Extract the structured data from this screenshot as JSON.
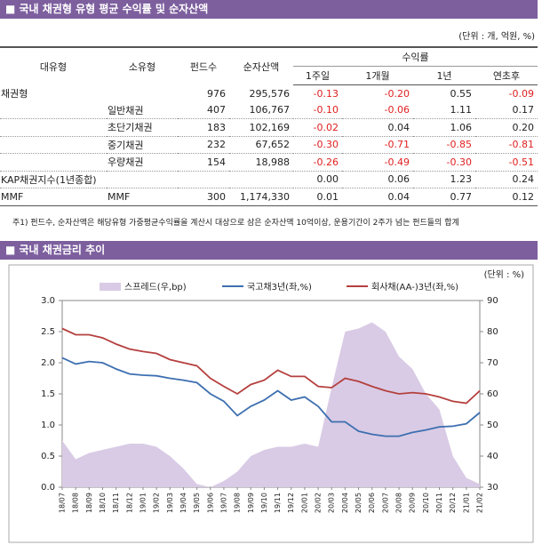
{
  "header": {
    "title": "■ 국내 채권형 유형 평균 수익률 및 순자산액",
    "unit": "(단위 : 개, 억원, %)"
  },
  "table": {
    "headers": [
      "대유형",
      "소유형",
      "펀드수",
      "순자산액",
      "수익률",
      "1주일",
      "1개월",
      "1년",
      "연초후"
    ],
    "rows": [
      [
        "채권형",
        null,
        "976",
        "295,576",
        "-0.13",
        "-0.20",
        "0.55",
        "-0.09"
      ],
      [
        null,
        "일반채권",
        "407",
        "106,767",
        "-0.10",
        "-0.06",
        "1.11",
        "0.17"
      ],
      [
        null,
        "초단기채권",
        "183",
        "102,169",
        "-0.02",
        "0.04",
        "1.06",
        "0.20"
      ],
      [
        null,
        "중기채권",
        "232",
        "67,652",
        "-0.30",
        "-0.71",
        "-0.85",
        "-0.81"
      ],
      [
        null,
        "우량채권",
        "154",
        "18,988",
        "-0.26",
        "-0.49",
        "-0.30",
        "-0.51"
      ],
      [
        "KAP채권지수(1년종합)",
        null,
        null,
        null,
        "0.00",
        "0.06",
        "1.23",
        "0.24"
      ],
      [
        "MMF",
        "MMF",
        "300",
        "1,174,330",
        "0.01",
        "0.04",
        "0.77",
        "0.12"
      ]
    ]
  },
  "footnote": "주1) 펀드수, 순자산액은 해당유형 가중평균수익률을 계산시 대상으로 삼은 순자산액 10억이상, 운용기간이 2주가 넘는 펀드들의 합계",
  "section2": {
    "title": "■ 국내 채권금리 추이"
  },
  "chart_data": {
    "type": "line",
    "unit": "(단위 : %)",
    "categories": [
      "18/07",
      "18/08",
      "18/09",
      "18/10",
      "18/11",
      "18/12",
      "19/01",
      "19/02",
      "19/03",
      "19/04",
      "19/05",
      "19/06",
      "19/07",
      "19/08",
      "19/09",
      "19/10",
      "19/11",
      "19/12",
      "20/01",
      "20/02",
      "20/03",
      "20/04",
      "20/05",
      "20/06",
      "20/07",
      "20/08",
      "20/09",
      "20/10",
      "20/11",
      "20/12",
      "21/01",
      "21/02"
    ],
    "series": [
      {
        "name": "스프레드(우,bp)",
        "color": "#d9cbe5",
        "axis": "y2",
        "kind": "area",
        "values": [
          45,
          39,
          41,
          42,
          43,
          44,
          44,
          43,
          40,
          36,
          31,
          30,
          32,
          35,
          40,
          42,
          43,
          43,
          44,
          43,
          62,
          80,
          81,
          83,
          80,
          72,
          68,
          60,
          55,
          40,
          33,
          31
        ]
      },
      {
        "name": "국고채3년(좌,%)",
        "color": "#3d6fb0",
        "values": [
          2.08,
          1.98,
          2.02,
          2.0,
          1.9,
          1.82,
          1.8,
          1.79,
          1.75,
          1.72,
          1.68,
          1.5,
          1.38,
          1.15,
          1.3,
          1.4,
          1.55,
          1.4,
          1.45,
          1.3,
          1.05,
          1.05,
          0.9,
          0.85,
          0.82,
          0.82,
          0.88,
          0.92,
          0.97,
          0.98,
          1.02,
          1.2
        ]
      },
      {
        "name": "회사채(AA-)3년(좌,%)",
        "color": "#b5403f",
        "values": [
          2.55,
          2.45,
          2.45,
          2.4,
          2.3,
          2.22,
          2.18,
          2.15,
          2.05,
          2.0,
          1.95,
          1.75,
          1.62,
          1.5,
          1.65,
          1.72,
          1.88,
          1.78,
          1.78,
          1.62,
          1.6,
          1.75,
          1.7,
          1.62,
          1.55,
          1.5,
          1.52,
          1.5,
          1.45,
          1.38,
          1.35,
          1.55
        ]
      }
    ],
    "ylim": [
      0,
      3
    ],
    "yticks": [
      {
        "value": 0,
        "label": "0.0"
      },
      {
        "value": 0.5,
        "label": "0.5"
      },
      {
        "value": 1,
        "label": "1.0"
      },
      {
        "value": 1.5,
        "label": "1.5"
      },
      {
        "value": 2,
        "label": "2.0"
      },
      {
        "value": 2.5,
        "label": "2.5"
      },
      {
        "value": 3,
        "label": "3.0"
      }
    ],
    "y2lim": [
      30,
      90
    ],
    "y2ticks": [
      30,
      40,
      50,
      60,
      70,
      80,
      90
    ]
  }
}
